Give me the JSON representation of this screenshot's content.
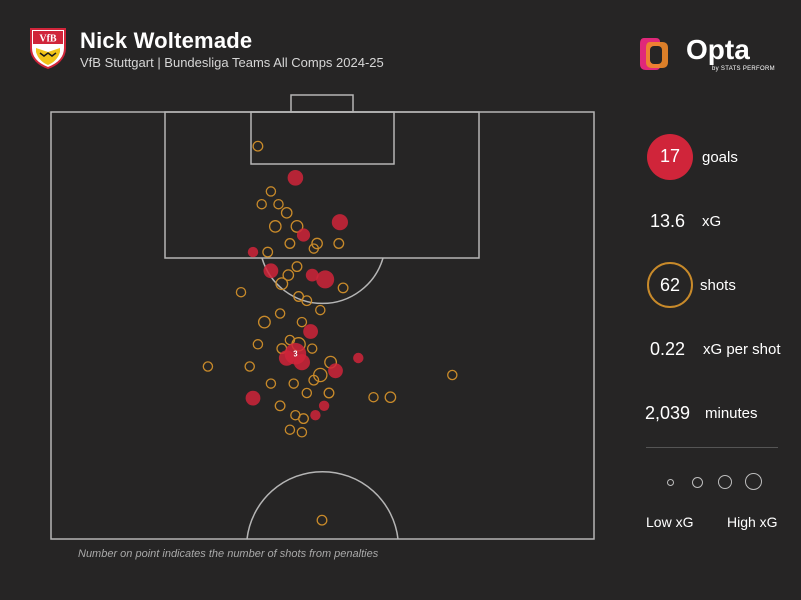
{
  "header": {
    "title": "Nick Woltemade",
    "subtitle": "VfB Stuttgart | Bundesliga Teams All Comps 2024-25"
  },
  "branding": {
    "logo_text": "Opta",
    "logo_tagline": "by STATS PERFORM",
    "crest_text": "VfB"
  },
  "stats": {
    "goals_value": "17",
    "goals_label": "goals",
    "xg_value": "13.6",
    "xg_label": "xG",
    "shots_value": "62",
    "shots_label": "shots",
    "xg_per_shot_value": "0.22",
    "xg_per_shot_label": "xG per shot",
    "minutes_value": "2,039",
    "minutes_label": "minutes"
  },
  "legend": {
    "low_label": "Low xG",
    "high_label": "High xG"
  },
  "footnote": "Number on point indicates the number of shots from penalties",
  "colors": {
    "background": "#262525",
    "goal": "#d0253a",
    "miss": "#c88a2a",
    "pitch_lines": "#b5b5b5"
  },
  "chart_data": {
    "type": "scatter",
    "pitch_view": "half-pitch, attacking goal at top",
    "x_axis": "pitch width (0-100, left to right)",
    "y_axis": "distance from goal line (0-50 of pitch length)",
    "size_encodes": "xG",
    "color_encodes": "outcome (red = goal, orange ring = no goal)",
    "points": [
      {
        "x": 38.1,
        "y": 4.0,
        "xg": 0.04,
        "goal": false
      },
      {
        "x": 45.0,
        "y": 7.7,
        "xg": 0.28,
        "goal": true
      },
      {
        "x": 40.5,
        "y": 9.3,
        "xg": 0.03,
        "goal": false
      },
      {
        "x": 38.8,
        "y": 10.8,
        "xg": 0.03,
        "goal": false
      },
      {
        "x": 41.9,
        "y": 10.8,
        "xg": 0.03,
        "goal": false
      },
      {
        "x": 43.4,
        "y": 11.8,
        "xg": 0.06,
        "goal": false
      },
      {
        "x": 41.3,
        "y": 13.4,
        "xg": 0.09,
        "goal": false
      },
      {
        "x": 45.3,
        "y": 13.4,
        "xg": 0.1,
        "goal": false
      },
      {
        "x": 53.2,
        "y": 12.9,
        "xg": 0.32,
        "goal": true
      },
      {
        "x": 46.5,
        "y": 14.4,
        "xg": 0.16,
        "goal": true
      },
      {
        "x": 44.0,
        "y": 15.4,
        "xg": 0.04,
        "goal": false
      },
      {
        "x": 37.2,
        "y": 16.4,
        "xg": 0.06,
        "goal": true
      },
      {
        "x": 39.9,
        "y": 16.4,
        "xg": 0.04,
        "goal": false
      },
      {
        "x": 48.4,
        "y": 16.0,
        "xg": 0.03,
        "goal": false
      },
      {
        "x": 49.0,
        "y": 15.4,
        "xg": 0.06,
        "goal": false
      },
      {
        "x": 53.0,
        "y": 15.4,
        "xg": 0.04,
        "goal": false
      },
      {
        "x": 40.5,
        "y": 18.6,
        "xg": 0.24,
        "goal": true
      },
      {
        "x": 43.7,
        "y": 19.1,
        "xg": 0.06,
        "goal": false
      },
      {
        "x": 45.3,
        "y": 18.1,
        "xg": 0.04,
        "goal": false
      },
      {
        "x": 48.1,
        "y": 19.1,
        "xg": 0.14,
        "goal": true
      },
      {
        "x": 50.5,
        "y": 19.6,
        "xg": 0.45,
        "goal": true
      },
      {
        "x": 42.5,
        "y": 20.1,
        "xg": 0.1,
        "goal": false
      },
      {
        "x": 45.6,
        "y": 21.6,
        "xg": 0.04,
        "goal": false
      },
      {
        "x": 47.1,
        "y": 22.1,
        "xg": 0.04,
        "goal": false
      },
      {
        "x": 53.8,
        "y": 20.6,
        "xg": 0.04,
        "goal": false
      },
      {
        "x": 35.0,
        "y": 21.1,
        "xg": 0.03,
        "goal": false
      },
      {
        "x": 49.6,
        "y": 23.2,
        "xg": 0.03,
        "goal": false
      },
      {
        "x": 39.3,
        "y": 24.6,
        "xg": 0.1,
        "goal": false
      },
      {
        "x": 46.2,
        "y": 24.6,
        "xg": 0.03,
        "goal": false
      },
      {
        "x": 47.8,
        "y": 25.7,
        "xg": 0.24,
        "goal": true
      },
      {
        "x": 44.0,
        "y": 26.7,
        "xg": 0.03,
        "goal": false
      },
      {
        "x": 45.6,
        "y": 27.2,
        "xg": 0.16,
        "goal": false
      },
      {
        "x": 42.5,
        "y": 27.7,
        "xg": 0.04,
        "goal": false
      },
      {
        "x": 38.1,
        "y": 27.2,
        "xg": 0.03,
        "goal": false
      },
      {
        "x": 48.1,
        "y": 27.7,
        "xg": 0.03,
        "goal": false
      },
      {
        "x": 45.0,
        "y": 28.3,
        "xg": 0.76,
        "goal": true,
        "penalties": 3
      },
      {
        "x": 43.4,
        "y": 28.8,
        "xg": 0.28,
        "goal": true
      },
      {
        "x": 46.2,
        "y": 29.3,
        "xg": 0.32,
        "goal": true
      },
      {
        "x": 51.5,
        "y": 29.3,
        "xg": 0.1,
        "goal": false
      },
      {
        "x": 56.6,
        "y": 28.8,
        "xg": 0.06,
        "goal": true
      },
      {
        "x": 28.9,
        "y": 29.8,
        "xg": 0.03,
        "goal": false
      },
      {
        "x": 36.6,
        "y": 29.8,
        "xg": 0.03,
        "goal": false
      },
      {
        "x": 49.6,
        "y": 30.8,
        "xg": 0.16,
        "goal": false
      },
      {
        "x": 52.4,
        "y": 30.3,
        "xg": 0.24,
        "goal": true
      },
      {
        "x": 73.9,
        "y": 30.8,
        "xg": 0.03,
        "goal": false
      },
      {
        "x": 40.5,
        "y": 31.8,
        "xg": 0.03,
        "goal": false
      },
      {
        "x": 44.7,
        "y": 31.8,
        "xg": 0.03,
        "goal": false
      },
      {
        "x": 48.4,
        "y": 31.4,
        "xg": 0.04,
        "goal": false
      },
      {
        "x": 37.2,
        "y": 33.5,
        "xg": 0.24,
        "goal": true
      },
      {
        "x": 47.1,
        "y": 32.9,
        "xg": 0.03,
        "goal": false
      },
      {
        "x": 51.2,
        "y": 32.9,
        "xg": 0.04,
        "goal": false
      },
      {
        "x": 59.4,
        "y": 33.4,
        "xg": 0.03,
        "goal": false
      },
      {
        "x": 62.5,
        "y": 33.4,
        "xg": 0.06,
        "goal": false
      },
      {
        "x": 50.3,
        "y": 34.4,
        "xg": 0.06,
        "goal": true
      },
      {
        "x": 42.2,
        "y": 34.4,
        "xg": 0.04,
        "goal": false
      },
      {
        "x": 45.0,
        "y": 35.5,
        "xg": 0.03,
        "goal": false
      },
      {
        "x": 46.5,
        "y": 35.9,
        "xg": 0.04,
        "goal": false
      },
      {
        "x": 48.7,
        "y": 35.5,
        "xg": 0.06,
        "goal": true
      },
      {
        "x": 42.2,
        "y": 23.6,
        "xg": 0.03,
        "goal": false
      },
      {
        "x": 44.0,
        "y": 37.2,
        "xg": 0.03,
        "goal": false
      },
      {
        "x": 46.2,
        "y": 37.5,
        "xg": 0.03,
        "goal": false
      },
      {
        "x": 49.9,
        "y": 47.8,
        "xg": 0.04,
        "goal": false
      }
    ]
  }
}
